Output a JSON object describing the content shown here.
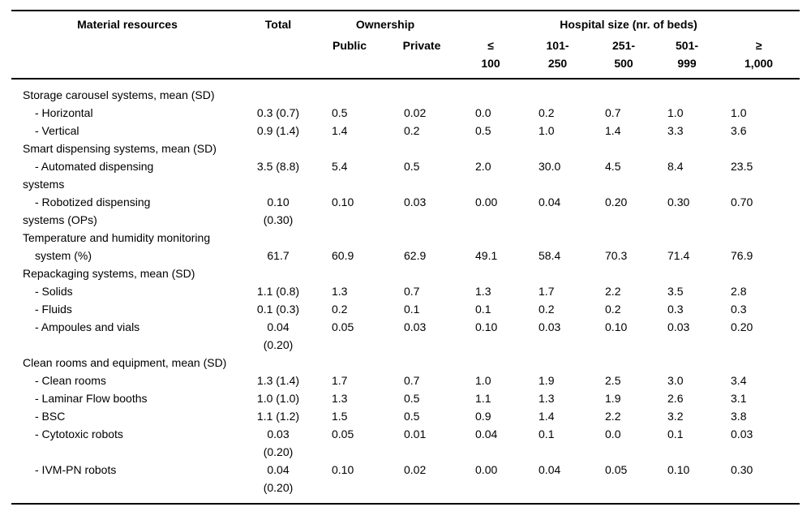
{
  "header": {
    "material_resources": "Material resources",
    "total": "Total",
    "ownership": "Ownership",
    "hospital_size": "Hospital size (nr. of beds)",
    "ownership_cols": [
      {
        "label": "Public"
      },
      {
        "label": "Private"
      }
    ],
    "size_cols": [
      {
        "line1": "≤",
        "line2": "100"
      },
      {
        "line1": "101-",
        "line2": "250"
      },
      {
        "line1": "251-",
        "line2": "500"
      },
      {
        "line1": "501-",
        "line2": "999"
      },
      {
        "line1": "≥",
        "line2": "1,000"
      }
    ]
  },
  "table": {
    "lines": [
      {
        "label": "Storage carousel systems, mean (SD)",
        "indent": 0
      },
      {
        "label": "- Horizontal",
        "indent": 1,
        "total": "0.3 (0.7)",
        "values": [
          "0.5",
          "0.02",
          "0.0",
          "0.2",
          "0.7",
          "1.0",
          "1.0"
        ]
      },
      {
        "label": "- Vertical",
        "indent": 1,
        "total": "0.9 (1.4)",
        "values": [
          "1.4",
          "0.2",
          "0.5",
          "1.0",
          "1.4",
          "3.3",
          "3.6"
        ]
      },
      {
        "label": "Smart dispensing systems, mean (SD)",
        "indent": 0
      },
      {
        "label": "- Automated dispensing",
        "indent": 1,
        "total": "3.5 (8.8)",
        "values": [
          "5.4",
          "0.5",
          "2.0",
          "30.0",
          "4.5",
          "8.4",
          "23.5"
        ]
      },
      {
        "label": "systems",
        "indent": 0
      },
      {
        "label": "- Robotized dispensing",
        "indent": 1,
        "total": "0.10",
        "values": [
          "0.10",
          "0.03",
          "0.00",
          "0.04",
          "0.20",
          "0.30",
          "0.70"
        ]
      },
      {
        "label": "systems (OPs)",
        "indent": 0,
        "total": "(0.30)"
      },
      {
        "label": "Temperature and humidity monitoring",
        "indent": 0
      },
      {
        "label": "system (%)",
        "indent": 1,
        "total": "61.7",
        "values": [
          "60.9",
          "62.9",
          "49.1",
          "58.4",
          "70.3",
          "71.4",
          "76.9"
        ]
      },
      {
        "label": "Repackaging systems, mean (SD)",
        "indent": 0
      },
      {
        "label": "- Solids",
        "indent": 1,
        "total": "1.1 (0.8)",
        "values": [
          "1.3",
          "0.7",
          "1.3",
          "1.7",
          "2.2",
          "3.5",
          "2.8"
        ]
      },
      {
        "label": "- Fluids",
        "indent": 1,
        "total": "0.1 (0.3)",
        "values": [
          "0.2",
          "0.1",
          "0.1",
          "0.2",
          "0.2",
          "0.3",
          "0.3"
        ]
      },
      {
        "label": "- Ampoules and vials",
        "indent": 1,
        "total": "0.04",
        "values": [
          "0.05",
          "0.03",
          "0.10",
          "0.03",
          "0.10",
          "0.03",
          "0.20"
        ]
      },
      {
        "label": "",
        "indent": 0,
        "total": "(0.20)"
      },
      {
        "label": "Clean rooms and equipment, mean (SD)",
        "indent": 0
      },
      {
        "label": "- Clean rooms",
        "indent": 1,
        "total": "1.3 (1.4)",
        "values": [
          "1.7",
          "0.7",
          "1.0",
          "1.9",
          "2.5",
          "3.0",
          "3.4"
        ]
      },
      {
        "label": "- Laminar Flow booths",
        "indent": 1,
        "total": "1.0 (1.0)",
        "values": [
          "1.3",
          "0.5",
          "1.1",
          "1.3",
          "1.9",
          "2.6",
          "3.1"
        ]
      },
      {
        "label": "- BSC",
        "indent": 1,
        "total": "1.1 (1.2)",
        "values": [
          "1.5",
          "0.5",
          "0.9",
          "1.4",
          "2.2",
          "3.2",
          "3.8"
        ]
      },
      {
        "label": "- Cytotoxic robots",
        "indent": 1,
        "total": "0.03",
        "values": [
          "0.05",
          "0.01",
          "0.04",
          "0.1",
          "0.0",
          "0.1",
          "0.03"
        ]
      },
      {
        "label": "",
        "indent": 0,
        "total": "(0.20)"
      },
      {
        "label": "- IVM-PN robots",
        "indent": 1,
        "total": "0.04",
        "values": [
          "0.10",
          "0.02",
          "0.00",
          "0.04",
          "0.05",
          "0.10",
          "0.30"
        ]
      },
      {
        "label": "",
        "indent": 0,
        "total": "(0.20)"
      }
    ]
  },
  "chart_data": {
    "type": "table",
    "title": "Material resources",
    "columns": [
      "Material resources",
      "Total",
      "Public",
      "Private",
      "≤ 100",
      "101-250",
      "251-500",
      "501-999",
      "≥ 1,000"
    ],
    "column_groups": [
      {
        "label": "Ownership",
        "columns": [
          "Public",
          "Private"
        ]
      },
      {
        "label": "Hospital size (nr. of beds)",
        "columns": [
          "≤ 100",
          "101-250",
          "251-500",
          "501-999",
          "≥ 1,000"
        ]
      }
    ],
    "rows": [
      {
        "label": "Storage carousel systems, mean (SD)",
        "group": true
      },
      {
        "label": "- Horizontal",
        "total": "0.3 (0.7)",
        "values": [
          "0.5",
          "0.02",
          "0.0",
          "0.2",
          "0.7",
          "1.0",
          "1.0"
        ]
      },
      {
        "label": "- Vertical",
        "total": "0.9 (1.4)",
        "values": [
          "1.4",
          "0.2",
          "0.5",
          "1.0",
          "1.4",
          "3.3",
          "3.6"
        ]
      },
      {
        "label": "Smart dispensing systems, mean (SD)",
        "group": true
      },
      {
        "label": "- Automated dispensing systems",
        "total": "3.5 (8.8)",
        "values": [
          "5.4",
          "0.5",
          "2.0",
          "30.0",
          "4.5",
          "8.4",
          "23.5"
        ]
      },
      {
        "label": "- Robotized dispensing systems (OPs)",
        "total": "0.10 (0.30)",
        "values": [
          "0.10",
          "0.03",
          "0.00",
          "0.04",
          "0.20",
          "0.30",
          "0.70"
        ]
      },
      {
        "label": "Temperature and humidity monitoring system (%)",
        "total": "61.7",
        "values": [
          "60.9",
          "62.9",
          "49.1",
          "58.4",
          "70.3",
          "71.4",
          "76.9"
        ]
      },
      {
        "label": "Repackaging systems, mean (SD)",
        "group": true
      },
      {
        "label": "- Solids",
        "total": "1.1 (0.8)",
        "values": [
          "1.3",
          "0.7",
          "1.3",
          "1.7",
          "2.2",
          "3.5",
          "2.8"
        ]
      },
      {
        "label": "- Fluids",
        "total": "0.1 (0.3)",
        "values": [
          "0.2",
          "0.1",
          "0.1",
          "0.2",
          "0.2",
          "0.3",
          "0.3"
        ]
      },
      {
        "label": "- Ampoules and vials",
        "total": "0.04 (0.20)",
        "values": [
          "0.05",
          "0.03",
          "0.10",
          "0.03",
          "0.10",
          "0.03",
          "0.20"
        ]
      },
      {
        "label": "Clean rooms and equipment, mean (SD)",
        "group": true
      },
      {
        "label": "- Clean rooms",
        "total": "1.3 (1.4)",
        "values": [
          "1.7",
          "0.7",
          "1.0",
          "1.9",
          "2.5",
          "3.0",
          "3.4"
        ]
      },
      {
        "label": "- Laminar Flow booths",
        "total": "1.0 (1.0)",
        "values": [
          "1.3",
          "0.5",
          "1.1",
          "1.3",
          "1.9",
          "2.6",
          "3.1"
        ]
      },
      {
        "label": "- BSC",
        "total": "1.1 (1.2)",
        "values": [
          "1.5",
          "0.5",
          "0.9",
          "1.4",
          "2.2",
          "3.2",
          "3.8"
        ]
      },
      {
        "label": "- Cytotoxic robots",
        "total": "0.03 (0.20)",
        "values": [
          "0.05",
          "0.01",
          "0.04",
          "0.1",
          "0.0",
          "0.1",
          "0.03"
        ]
      },
      {
        "label": "- IVM-PN robots",
        "total": "0.04 (0.20)",
        "values": [
          "0.10",
          "0.02",
          "0.00",
          "0.04",
          "0.05",
          "0.10",
          "0.30"
        ]
      }
    ]
  }
}
